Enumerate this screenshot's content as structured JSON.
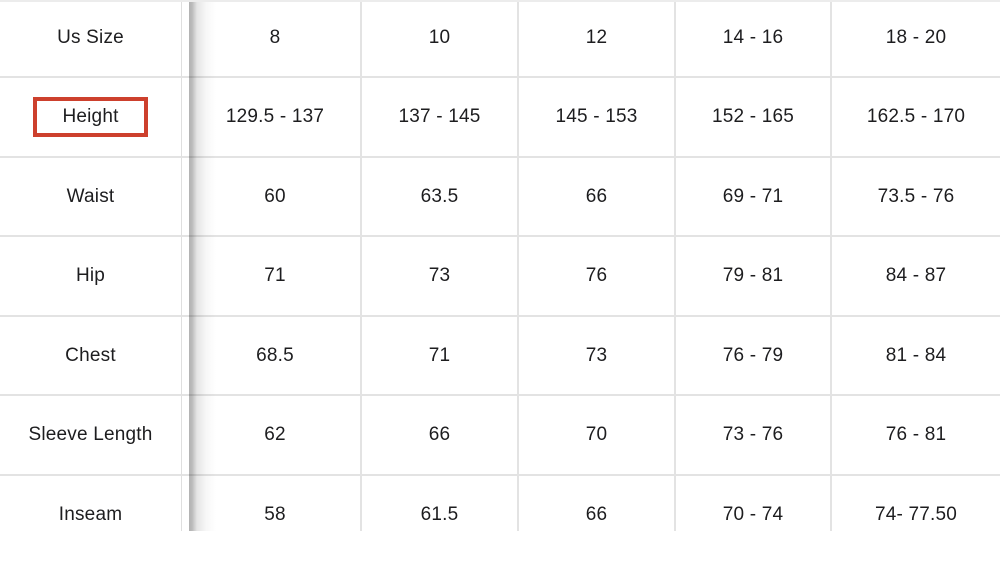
{
  "page": {
    "background": "#ffffff"
  },
  "table": {
    "title": "size-chart",
    "rows": [
      {
        "label": "Us Size",
        "highlighted": false,
        "values": [
          "8",
          "10",
          "12",
          "14 - 16",
          "18 - 20"
        ]
      },
      {
        "label": "Height",
        "highlighted": true,
        "values": [
          "129.5 - 137",
          "137 - 145",
          "145 - 153",
          "152 - 165",
          "162.5 - 170"
        ]
      },
      {
        "label": "Waist",
        "highlighted": false,
        "values": [
          "60",
          "63.5",
          "66",
          "69 - 71",
          "73.5 - 76"
        ]
      },
      {
        "label": "Hip",
        "highlighted": false,
        "values": [
          "71",
          "73",
          "76",
          "79 - 81",
          "84 - 87"
        ]
      },
      {
        "label": "Chest",
        "highlighted": false,
        "values": [
          "68.5",
          "71",
          "73",
          "76 - 79",
          "81 - 84"
        ]
      },
      {
        "label": "Sleeve Length",
        "highlighted": false,
        "values": [
          "62",
          "66",
          "70",
          "73 - 76",
          "76 - 81"
        ]
      },
      {
        "label": "Inseam",
        "highlighted": false,
        "values": [
          "58",
          "61.5",
          "66",
          "70 - 74",
          "74- 77.50"
        ]
      }
    ]
  },
  "annotation": {
    "target_label": "Height",
    "box_color": "#cd402d"
  },
  "colors": {
    "grid_border": "#e3e3e3",
    "label_column_border": "#dfdfdf",
    "text": "#1d1d1f",
    "divider_shadow": "rgba(0,0,0,0.30)"
  }
}
